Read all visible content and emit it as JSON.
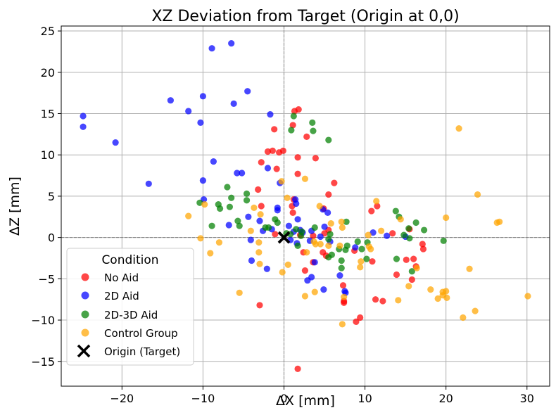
{
  "chart_data": {
    "type": "scatter",
    "title": "XZ Deviation from Target (Origin at 0,0)",
    "xlabel": "ΔX [mm]",
    "ylabel": "ΔZ [mm]",
    "xlim": [
      -27.5,
      32.8
    ],
    "ylim": [
      -18,
      25.6
    ],
    "xticks": [
      -20,
      -10,
      0,
      10,
      20,
      30
    ],
    "yticks": [
      -15,
      -10,
      -5,
      0,
      5,
      10,
      15,
      20,
      25
    ],
    "grid": true,
    "legend": {
      "title": "Condition",
      "position": "lower-left"
    },
    "reference_lines": {
      "x": 0,
      "y": 0,
      "style": "dashed gray"
    },
    "series": [
      {
        "name": "No Aid",
        "color": "#ff0000",
        "points": [
          [
            1.8,
            15.5
          ],
          [
            1.3,
            15.3
          ],
          [
            -1.2,
            13.1
          ],
          [
            1.1,
            13.6
          ],
          [
            2.8,
            12.2
          ],
          [
            -2.0,
            10.4
          ],
          [
            -1.4,
            10.5
          ],
          [
            -0.6,
            10.3
          ],
          [
            -0.1,
            10.5
          ],
          [
            1.7,
            9.7
          ],
          [
            3.9,
            9.6
          ],
          [
            -2.8,
            9.1
          ],
          [
            -0.9,
            8.3
          ],
          [
            1.7,
            7.7
          ],
          [
            6.2,
            6.6
          ],
          [
            5.5,
            5.2
          ],
          [
            -3.2,
            5.8
          ],
          [
            1.2,
            4.6
          ],
          [
            1.0,
            3.8
          ],
          [
            -2.8,
            3.8
          ],
          [
            1.1,
            3.0
          ],
          [
            4.9,
            3.5
          ],
          [
            10.8,
            3.2
          ],
          [
            11.5,
            3.8
          ],
          [
            15.5,
            1.0
          ],
          [
            13.4,
            0.5
          ],
          [
            5.5,
            0.9
          ],
          [
            5.0,
            0.5
          ],
          [
            3.6,
            0.2
          ],
          [
            2.0,
            0.3
          ],
          [
            -1.1,
            0.4
          ],
          [
            17.1,
            -0.8
          ],
          [
            17.2,
            -1.4
          ],
          [
            15.1,
            -2.7
          ],
          [
            16.0,
            -2.6
          ],
          [
            16.3,
            -3.5
          ],
          [
            15.8,
            -5.1
          ],
          [
            13.9,
            -4.5
          ],
          [
            10.9,
            -2.9
          ],
          [
            3.6,
            -3.0
          ],
          [
            4.8,
            -1.8
          ],
          [
            5.2,
            -2.2
          ],
          [
            2.4,
            -1.8
          ],
          [
            2.6,
            -4.0
          ],
          [
            7.3,
            -5.8
          ],
          [
            7.4,
            -7.7
          ],
          [
            7.4,
            -7.9
          ],
          [
            11.3,
            -7.5
          ],
          [
            12.2,
            -7.7
          ],
          [
            9.4,
            -9.7
          ],
          [
            8.9,
            -10.2
          ],
          [
            -3.0,
            -8.2
          ],
          [
            1.7,
            -15.9
          ],
          [
            8.7,
            -1.6
          ]
        ]
      },
      {
        "name": "2D Aid",
        "color": "#0000ff",
        "points": [
          [
            -6.5,
            23.5
          ],
          [
            -8.9,
            22.9
          ],
          [
            -4.5,
            17.7
          ],
          [
            -10.0,
            17.1
          ],
          [
            -14.0,
            16.6
          ],
          [
            -6.2,
            16.2
          ],
          [
            -11.8,
            15.3
          ],
          [
            -1.7,
            14.9
          ],
          [
            -24.8,
            14.7
          ],
          [
            -10.3,
            13.9
          ],
          [
            -24.8,
            13.4
          ],
          [
            -20.8,
            11.5
          ],
          [
            -8.7,
            9.2
          ],
          [
            -2.0,
            8.4
          ],
          [
            -5.8,
            7.8
          ],
          [
            -5.2,
            7.8
          ],
          [
            -10.0,
            6.9
          ],
          [
            -16.7,
            6.5
          ],
          [
            -0.5,
            6.6
          ],
          [
            -9.9,
            4.6
          ],
          [
            1.4,
            4.6
          ],
          [
            1.5,
            4.1
          ],
          [
            -0.8,
            3.6
          ],
          [
            -0.8,
            3.3
          ],
          [
            4.8,
            3.4
          ],
          [
            5.4,
            3.0
          ],
          [
            -4.4,
            2.5
          ],
          [
            1.7,
            2.2
          ],
          [
            -3.0,
            2.0
          ],
          [
            0.6,
            1.4
          ],
          [
            -6.8,
            1.5
          ],
          [
            5.0,
            1.3
          ],
          [
            -1.5,
            1.0
          ],
          [
            -2.6,
            0.8
          ],
          [
            -4.1,
            -0.3
          ],
          [
            2.0,
            0.9
          ],
          [
            1.2,
            0.7
          ],
          [
            3.4,
            0.8
          ],
          [
            2.3,
            0.6
          ],
          [
            11.0,
            0.6
          ],
          [
            15.0,
            0.1
          ],
          [
            4.5,
            0.1
          ],
          [
            12.7,
            0.2
          ],
          [
            5.7,
            -0.5
          ],
          [
            8.8,
            -1.2
          ],
          [
            0.8,
            -0.3
          ],
          [
            3.2,
            -0.4
          ],
          [
            -4.0,
            -2.8
          ],
          [
            -2.1,
            -3.8
          ],
          [
            3.8,
            -3.0
          ],
          [
            3.4,
            -4.8
          ],
          [
            2.9,
            -5.2
          ],
          [
            4.9,
            -6.3
          ],
          [
            7.5,
            -6.5
          ],
          [
            7.6,
            -6.7
          ],
          [
            1.6,
            -0.7
          ],
          [
            6.9,
            -4.6
          ]
        ]
      },
      {
        "name": "2D-3D Aid",
        "color": "#008000",
        "points": [
          [
            1.2,
            14.7
          ],
          [
            3.5,
            13.9
          ],
          [
            3.6,
            12.9
          ],
          [
            0.9,
            13.0
          ],
          [
            5.5,
            11.8
          ],
          [
            -7.0,
            6.1
          ],
          [
            -6.5,
            4.8
          ],
          [
            -4.6,
            5.3
          ],
          [
            -10.4,
            4.2
          ],
          [
            -8.1,
            4.0
          ],
          [
            -7.9,
            3.5
          ],
          [
            -6.7,
            3.7
          ],
          [
            -4.6,
            4.5
          ],
          [
            -5.7,
            2.0
          ],
          [
            -2.3,
            1.2
          ],
          [
            -1.1,
            2.2
          ],
          [
            -0.8,
            1.8
          ],
          [
            -1.9,
            1.2
          ],
          [
            0.3,
            0.5
          ],
          [
            0.8,
            0.4
          ],
          [
            1.5,
            1.0
          ],
          [
            2.2,
            0.7
          ],
          [
            3.8,
            1.2
          ],
          [
            5.7,
            0.4
          ],
          [
            7.7,
            1.9
          ],
          [
            13.8,
            3.2
          ],
          [
            14.2,
            2.5
          ],
          [
            16.3,
            1.8
          ],
          [
            17.3,
            0.9
          ],
          [
            15.4,
            1.1
          ],
          [
            14.8,
            0.3
          ],
          [
            15.5,
            -0.1
          ],
          [
            19.7,
            -0.4
          ],
          [
            10.3,
            -0.6
          ],
          [
            9.6,
            -1.4
          ],
          [
            9.1,
            -0.5
          ],
          [
            7.6,
            -1.5
          ],
          [
            6.8,
            -1.4
          ],
          [
            7.8,
            -1.0
          ],
          [
            10.2,
            -2.6
          ],
          [
            5.5,
            -2.4
          ],
          [
            5.9,
            -2.1
          ],
          [
            7.1,
            -2.8
          ],
          [
            7.1,
            -3.7
          ],
          [
            13.9,
            -2.6
          ],
          [
            15.8,
            -4.1
          ],
          [
            -8.9,
            1.4
          ],
          [
            -5.5,
            1.4
          ],
          [
            2.1,
            0.2
          ],
          [
            1.7,
            -1.0
          ],
          [
            5.5,
            -0.2
          ]
        ]
      },
      {
        "name": "Control Group",
        "color": "#ffa500",
        "points": [
          [
            21.6,
            13.2
          ],
          [
            2.6,
            7.1
          ],
          [
            -0.3,
            6.8
          ],
          [
            23.9,
            5.2
          ],
          [
            0.4,
            4.8
          ],
          [
            26.6,
            1.9
          ],
          [
            26.3,
            1.8
          ],
          [
            11.4,
            4.4
          ],
          [
            14.4,
            2.2
          ],
          [
            20.0,
            2.4
          ],
          [
            -11.8,
            2.6
          ],
          [
            -3.7,
            3.6
          ],
          [
            4.4,
            3.8
          ],
          [
            -2.9,
            2.8
          ],
          [
            -9.8,
            4.0
          ],
          [
            7.1,
            1.9
          ],
          [
            5.8,
            1.7
          ],
          [
            10.4,
            0.3
          ],
          [
            12.0,
            0.8
          ],
          [
            7.2,
            1.2
          ],
          [
            -10.3,
            -0.1
          ],
          [
            -8.0,
            -0.6
          ],
          [
            -4.1,
            0.8
          ],
          [
            3.9,
            -0.8
          ],
          [
            5.5,
            -1.0
          ],
          [
            -3.1,
            -0.6
          ],
          [
            -9.1,
            -1.9
          ],
          [
            -3.1,
            -1.8
          ],
          [
            -3.0,
            -3.2
          ],
          [
            0.5,
            -3.3
          ],
          [
            -0.2,
            -4.2
          ],
          [
            2.8,
            -1.8
          ],
          [
            3.7,
            -0.5
          ],
          [
            4.5,
            -0.8
          ],
          [
            6.9,
            -1.0
          ],
          [
            9.4,
            -3.6
          ],
          [
            10.7,
            -1.4
          ],
          [
            10.5,
            -1.1
          ],
          [
            16.4,
            -3.7
          ],
          [
            18.1,
            -6.3
          ],
          [
            19.0,
            -7.4
          ],
          [
            19.6,
            -7.0
          ],
          [
            19.6,
            -6.6
          ],
          [
            20.1,
            -7.3
          ],
          [
            22.9,
            -3.8
          ],
          [
            23.6,
            -8.9
          ],
          [
            22.1,
            -9.7
          ],
          [
            20.0,
            -6.5
          ],
          [
            14.1,
            -7.6
          ],
          [
            15.4,
            -5.9
          ],
          [
            3.8,
            -6.6
          ],
          [
            2.6,
            -7.1
          ],
          [
            -5.5,
            -6.7
          ],
          [
            7.2,
            -10.5
          ],
          [
            30.1,
            -7.1
          ],
          [
            9.5,
            -2.9
          ],
          [
            7.4,
            -7.2
          ]
        ]
      }
    ],
    "origin_marker": {
      "name": "Origin (Target)",
      "x": 0,
      "y": 0,
      "marker": "x",
      "color": "#000000"
    }
  }
}
